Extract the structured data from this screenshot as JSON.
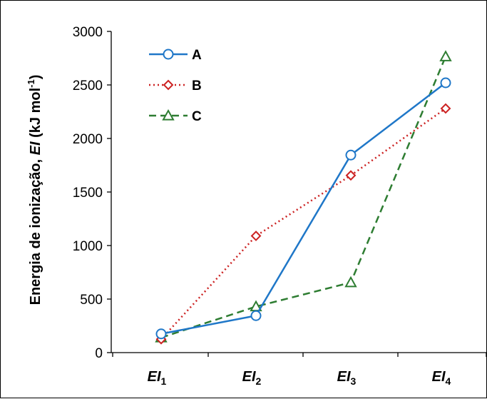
{
  "chart_data": {
    "type": "line",
    "categories": [
      "EI1",
      "EI2",
      "EI3",
      "EI4"
    ],
    "category_labels": [
      {
        "main": "EI",
        "sub": "1"
      },
      {
        "main": "EI",
        "sub": "2"
      },
      {
        "main": "EI",
        "sub": "3"
      },
      {
        "main": "EI",
        "sub": "4"
      }
    ],
    "series": [
      {
        "name": "A",
        "values": [
          175,
          345,
          1845,
          2520
        ],
        "color": "#1f77c8",
        "marker": "circle",
        "dash": "solid"
      },
      {
        "name": "B",
        "values": [
          125,
          1090,
          1655,
          2280
        ],
        "color": "#cc2222",
        "marker": "diamond",
        "dash": "dotted"
      },
      {
        "name": "C",
        "values": [
          140,
          430,
          655,
          2765
        ],
        "color": "#2e7d32",
        "marker": "triangle",
        "dash": "dashed"
      }
    ],
    "ylim": [
      0,
      3000
    ],
    "yticks": [
      0,
      500,
      1000,
      1500,
      2000,
      2500,
      3000
    ],
    "ylabel": {
      "pre": "Energia de ionização, ",
      "italic": "EI",
      "post": " (kJ mol",
      "sup": "-1",
      "end": ")"
    },
    "grid": false,
    "legend_position": "top-left"
  }
}
